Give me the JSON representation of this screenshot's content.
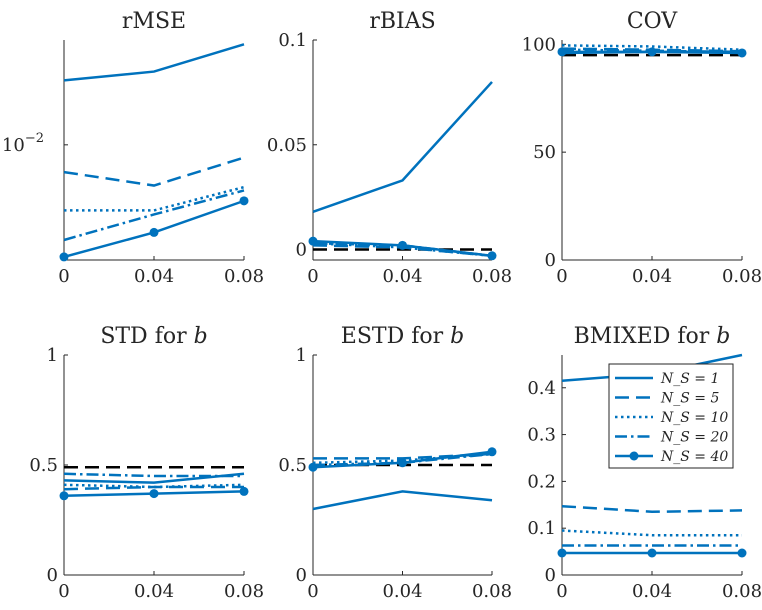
{
  "styles": {
    "series_color": "#0072BD",
    "ref_color": "#000000",
    "axis_color": "#262626"
  },
  "legend": {
    "entries": [
      {
        "label": "N_S = 1",
        "dash": "solid",
        "marker": false
      },
      {
        "label": "N_S = 5",
        "dash": "dashed",
        "marker": false
      },
      {
        "label": "N_S = 10",
        "dash": "dotted",
        "marker": false
      },
      {
        "label": "N_S = 20",
        "dash": "dashdot",
        "marker": false
      },
      {
        "label": "N_S = 40",
        "dash": "solid",
        "marker": true
      }
    ]
  },
  "chart_data": [
    {
      "type": "line",
      "title": "rMSE",
      "x": [
        0,
        0.04,
        0.08
      ],
      "xticks": [
        "0",
        "0.04",
        "0.08"
      ],
      "yscale": "log",
      "ylim": [
        0.0035,
        0.026
      ],
      "yticks": [
        {
          "value": 0.01,
          "label": "10",
          "exp": "−2"
        }
      ],
      "series": [
        {
          "dash": "solid",
          "marker": false,
          "values": [
            0.018,
            0.0195,
            0.025
          ]
        },
        {
          "dash": "dashed",
          "marker": false,
          "values": [
            0.0078,
            0.0069,
            0.0089
          ]
        },
        {
          "dash": "dotted",
          "marker": false,
          "values": [
            0.0055,
            0.0055,
            0.0068
          ]
        },
        {
          "dash": "dashdot",
          "marker": false,
          "values": [
            0.0042,
            0.0053,
            0.0066
          ]
        },
        {
          "dash": "solid",
          "marker": true,
          "values": [
            0.0036,
            0.0045,
            0.006
          ]
        }
      ],
      "reference": null
    },
    {
      "type": "line",
      "title": "rBIAS",
      "x": [
        0,
        0.04,
        0.08
      ],
      "xticks": [
        "0",
        "0.04",
        "0.08"
      ],
      "yscale": "linear",
      "ylim": [
        -0.005,
        0.1
      ],
      "yticks": [
        {
          "value": 0,
          "label": "0"
        },
        {
          "value": 0.05,
          "label": "0.05"
        },
        {
          "value": 0.1,
          "label": "0.1"
        }
      ],
      "series": [
        {
          "dash": "solid",
          "marker": false,
          "values": [
            0.018,
            0.033,
            0.08
          ]
        },
        {
          "dash": "dashed",
          "marker": false,
          "values": [
            0.002,
            0.001,
            -0.003
          ]
        },
        {
          "dash": "dotted",
          "marker": false,
          "values": [
            0.003,
            0.001,
            -0.003
          ]
        },
        {
          "dash": "dashdot",
          "marker": false,
          "values": [
            0.003,
            0.002,
            -0.003
          ]
        },
        {
          "dash": "solid",
          "marker": true,
          "values": [
            0.004,
            0.002,
            -0.003
          ]
        }
      ],
      "reference": {
        "values": [
          0,
          0,
          0
        ]
      }
    },
    {
      "type": "line",
      "title": "COV",
      "x": [
        0,
        0.04,
        0.08
      ],
      "xticks": [
        "0",
        "0.04",
        "0.08"
      ],
      "yscale": "linear",
      "ylim": [
        0,
        102
      ],
      "yticks": [
        {
          "value": 0,
          "label": "0"
        },
        {
          "value": 50,
          "label": "50"
        },
        {
          "value": 100,
          "label": "100"
        }
      ],
      "series": [
        {
          "dash": "solid",
          "marker": false,
          "values": [
            96,
            96.5,
            96.5
          ]
        },
        {
          "dash": "dashed",
          "marker": false,
          "values": [
            98,
            97.5,
            96.8
          ]
        },
        {
          "dash": "dotted",
          "marker": false,
          "values": [
            99.5,
            99,
            97.5
          ]
        },
        {
          "dash": "dashdot",
          "marker": false,
          "values": [
            97.5,
            97,
            96.5
          ]
        },
        {
          "dash": "solid",
          "marker": true,
          "values": [
            96.5,
            96.5,
            96
          ]
        }
      ],
      "reference": {
        "values": [
          95,
          95,
          95
        ]
      }
    },
    {
      "type": "line",
      "title": "STD for b",
      "title_text": "STD for ",
      "title_var": "b",
      "x": [
        0,
        0.04,
        0.08
      ],
      "xticks": [
        "0",
        "0.04",
        "0.08"
      ],
      "yscale": "linear",
      "ylim": [
        0,
        1
      ],
      "yticks": [
        {
          "value": 0,
          "label": "0"
        },
        {
          "value": 0.5,
          "label": "0.5"
        },
        {
          "value": 1,
          "label": "1"
        }
      ],
      "series": [
        {
          "dash": "solid",
          "marker": false,
          "values": [
            0.43,
            0.42,
            0.46
          ]
        },
        {
          "dash": "dashed",
          "marker": false,
          "values": [
            0.39,
            0.4,
            0.4
          ]
        },
        {
          "dash": "dotted",
          "marker": false,
          "values": [
            0.41,
            0.4,
            0.41
          ]
        },
        {
          "dash": "dashdot",
          "marker": false,
          "values": [
            0.46,
            0.45,
            0.45
          ]
        },
        {
          "dash": "solid",
          "marker": true,
          "values": [
            0.36,
            0.37,
            0.38
          ]
        }
      ],
      "reference": {
        "values": [
          0.49,
          0.49,
          0.49
        ]
      }
    },
    {
      "type": "line",
      "title": "ESTD for b",
      "title_text": "ESTD for ",
      "title_var": "b",
      "x": [
        0,
        0.04,
        0.08
      ],
      "xticks": [
        "0",
        "0.04",
        "0.08"
      ],
      "yscale": "linear",
      "ylim": [
        0,
        1
      ],
      "yticks": [
        {
          "value": 0,
          "label": "0"
        },
        {
          "value": 0.5,
          "label": "0.5"
        },
        {
          "value": 1,
          "label": "1"
        }
      ],
      "series": [
        {
          "dash": "solid",
          "marker": false,
          "values": [
            0.3,
            0.38,
            0.34
          ]
        },
        {
          "dash": "dashed",
          "marker": false,
          "values": [
            0.53,
            0.53,
            0.55
          ]
        },
        {
          "dash": "dotted",
          "marker": false,
          "values": [
            0.51,
            0.52,
            0.55
          ]
        },
        {
          "dash": "dashdot",
          "marker": false,
          "values": [
            0.5,
            0.51,
            0.55
          ]
        },
        {
          "dash": "solid",
          "marker": true,
          "values": [
            0.49,
            0.51,
            0.56
          ]
        }
      ],
      "reference": {
        "values": [
          0.5,
          0.5,
          0.5
        ]
      }
    },
    {
      "type": "line",
      "title": "BMIXED for b",
      "title_text": "BMIXED for ",
      "title_var": "b",
      "x": [
        0,
        0.04,
        0.08
      ],
      "xticks": [
        "0",
        "0.04",
        "0.08"
      ],
      "yscale": "linear",
      "ylim": [
        0,
        0.47
      ],
      "yticks": [
        {
          "value": 0,
          "label": "0"
        },
        {
          "value": 0.1,
          "label": "0.1"
        },
        {
          "value": 0.2,
          "label": "0.2"
        },
        {
          "value": 0.3,
          "label": "0.3"
        },
        {
          "value": 0.4,
          "label": "0.4"
        }
      ],
      "series": [
        {
          "dash": "solid",
          "marker": false,
          "values": [
            0.415,
            0.43,
            0.47
          ]
        },
        {
          "dash": "dashed",
          "marker": false,
          "values": [
            0.147,
            0.135,
            0.138
          ]
        },
        {
          "dash": "dotted",
          "marker": false,
          "values": [
            0.095,
            0.085,
            0.085
          ]
        },
        {
          "dash": "dashdot",
          "marker": false,
          "values": [
            0.063,
            0.063,
            0.063
          ]
        },
        {
          "dash": "solid",
          "marker": true,
          "values": [
            0.047,
            0.047,
            0.047
          ]
        }
      ],
      "reference": null,
      "legend_location": "top-right"
    }
  ]
}
